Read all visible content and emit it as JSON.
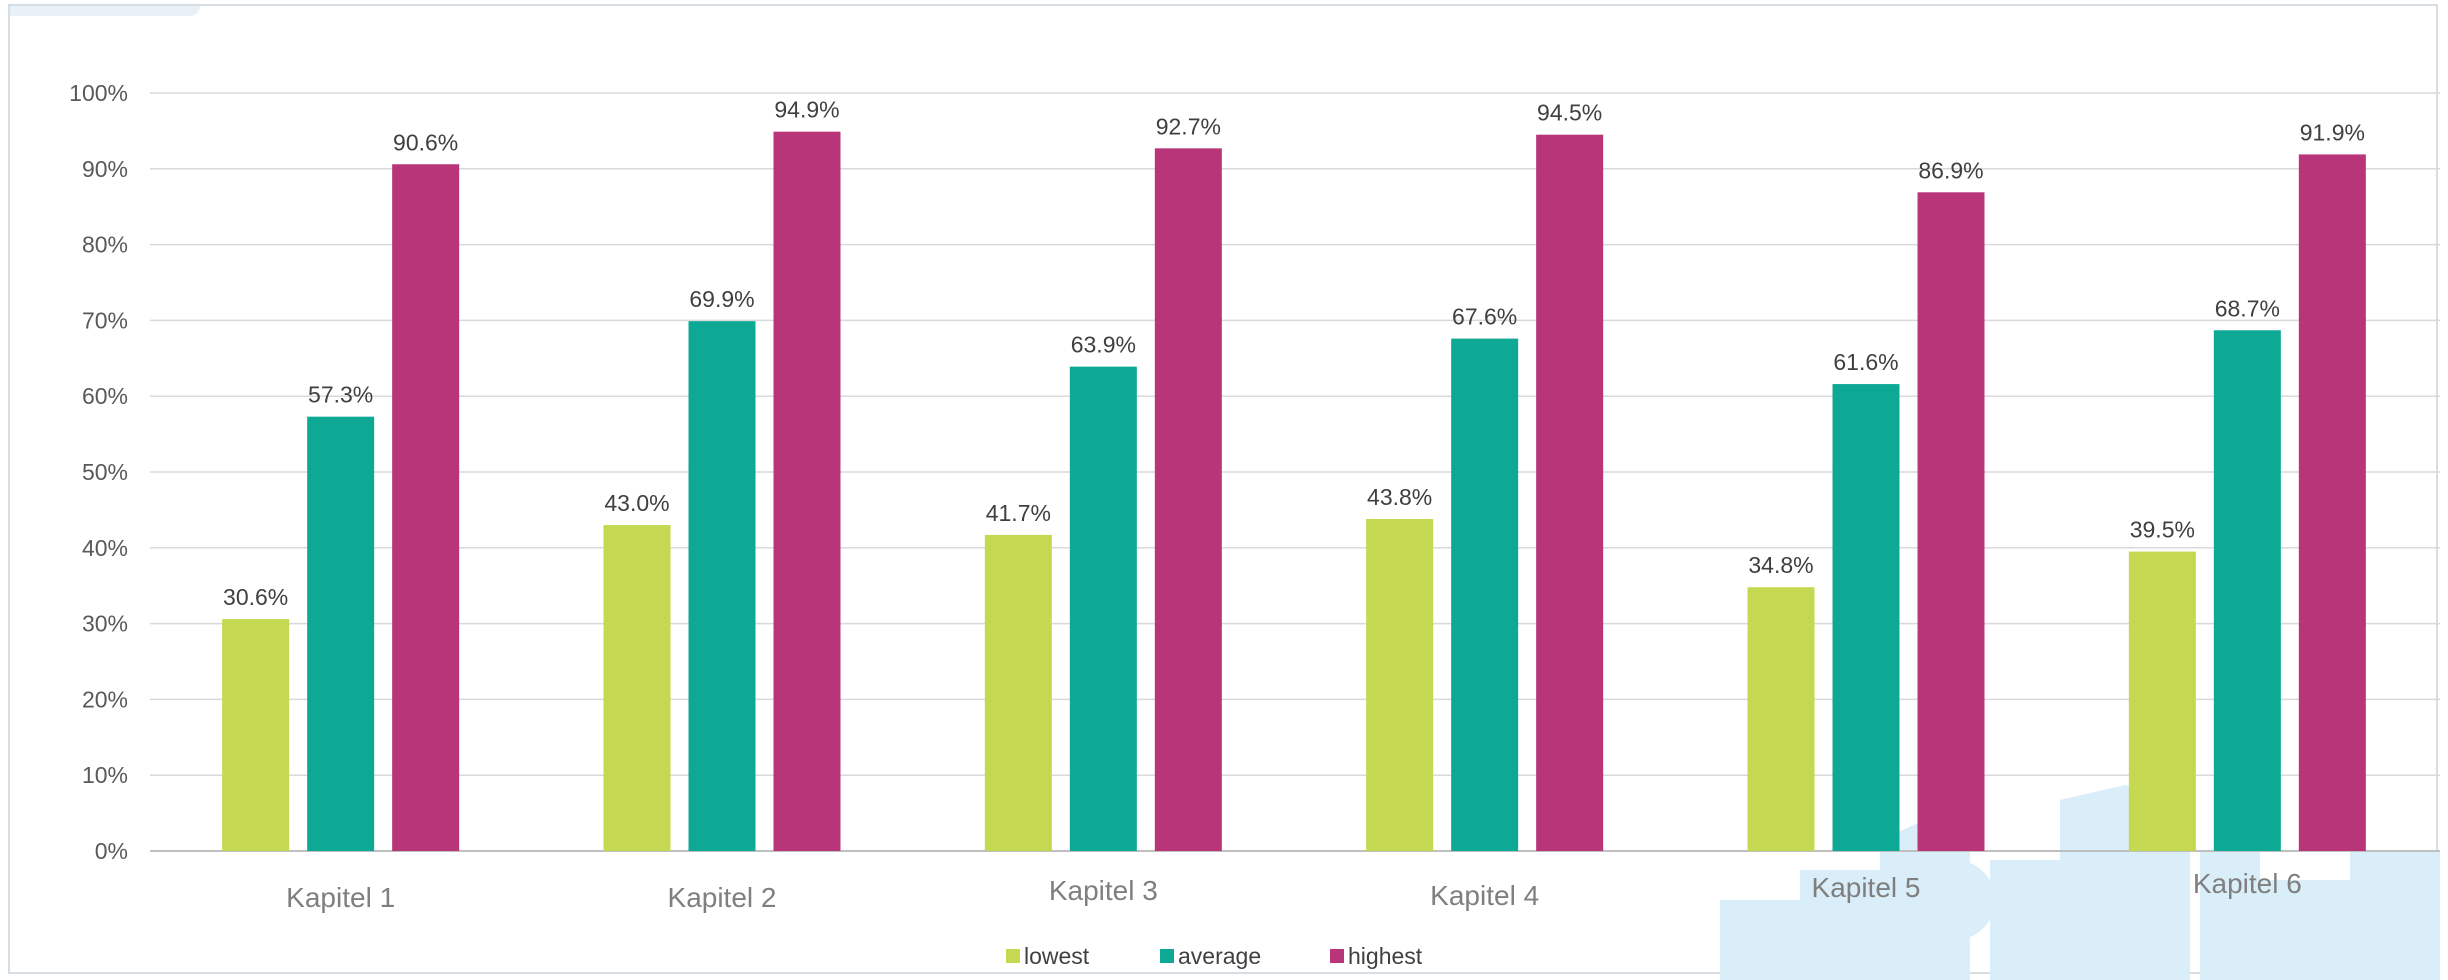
{
  "chart_data": {
    "type": "bar",
    "title": "",
    "xlabel": "",
    "ylabel": "",
    "ylim": [
      0,
      100
    ],
    "y_unit": "%",
    "y_ticks": [
      "0%",
      "10%",
      "20%",
      "30%",
      "40%",
      "50%",
      "60%",
      "70%",
      "80%",
      "90%",
      "100%"
    ],
    "grid": true,
    "legend_position": "bottom",
    "categories": [
      "Kapitel 1",
      "Kapitel 2",
      "Kapitel 3",
      "Kapitel 4",
      "Kapitel 5",
      "Kapitel 6"
    ],
    "series": [
      {
        "name": "lowest",
        "color": "#c5d851",
        "values": [
          30.6,
          43.0,
          41.7,
          43.8,
          34.8,
          39.5
        ],
        "labels": [
          "30.6%",
          "43.0%",
          "41.7%",
          "43.8%",
          "34.8%",
          "39.5%"
        ]
      },
      {
        "name": "average",
        "color": "#0ea995",
        "values": [
          57.3,
          69.9,
          63.9,
          67.6,
          61.6,
          68.7
        ],
        "labels": [
          "57.3%",
          "69.9%",
          "63.9%",
          "67.6%",
          "61.6%",
          "68.7%"
        ]
      },
      {
        "name": "highest",
        "color": "#b93579",
        "values": [
          90.6,
          94.9,
          92.7,
          94.5,
          86.9,
          91.9
        ],
        "labels": [
          "90.6%",
          "94.9%",
          "92.7%",
          "94.5%",
          "86.9%",
          "91.9%"
        ]
      }
    ]
  },
  "colors": {
    "grid": "#d9d9d9",
    "axis": "#bfbfbf",
    "watermark": "#d9eef8"
  },
  "decoration": {
    "watermark_icon": "city-skyline-icon"
  }
}
